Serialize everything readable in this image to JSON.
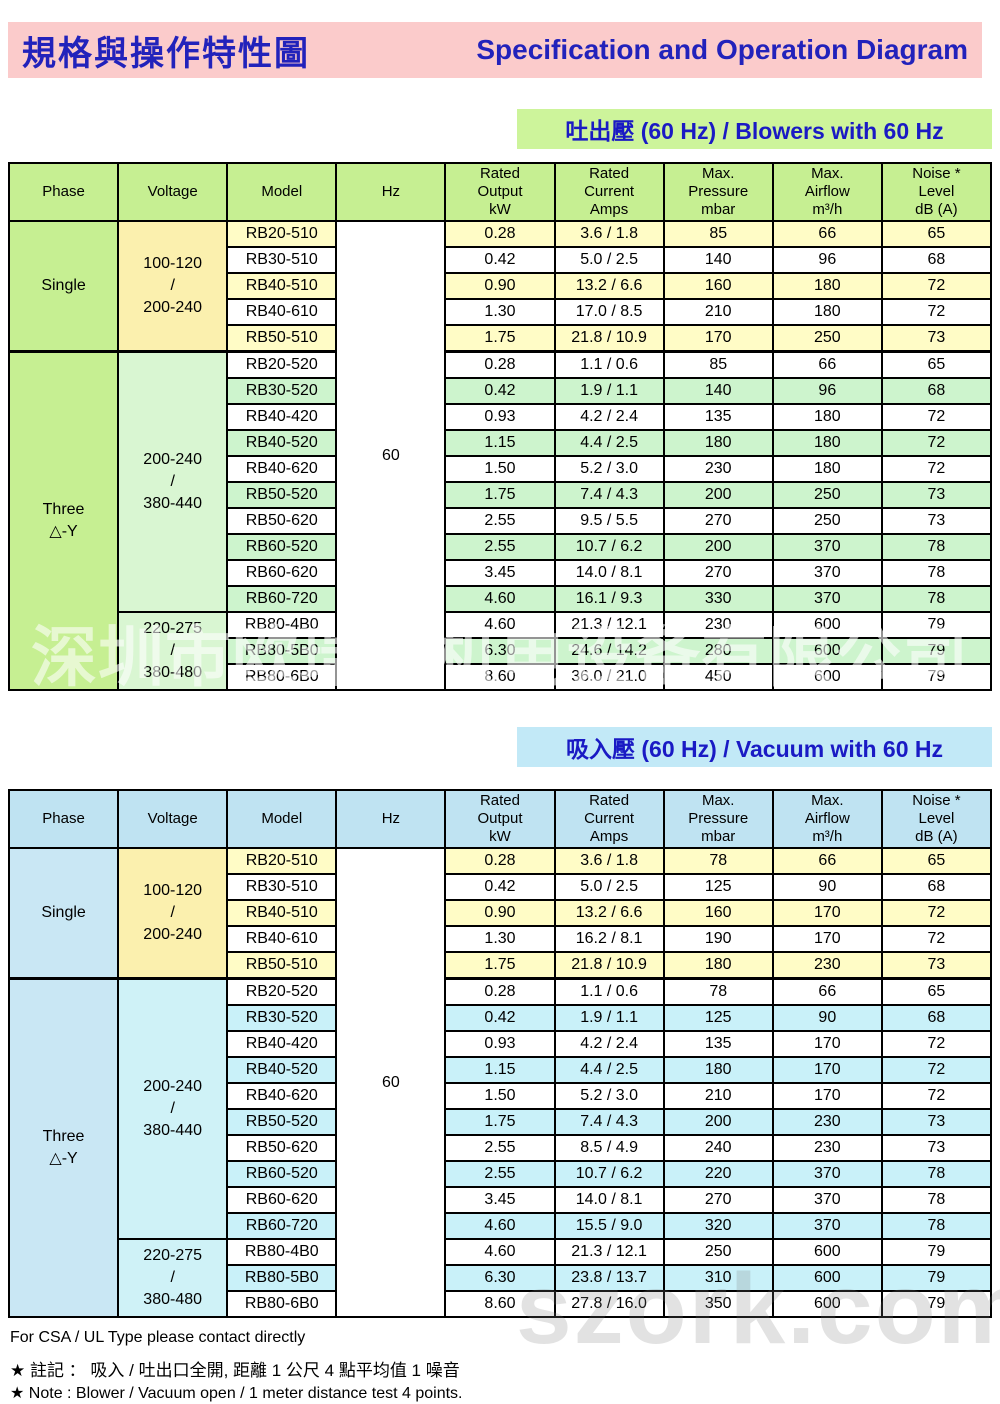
{
  "page": {
    "title_zh": "規格與操作特性圖",
    "title_en": "Specification and Operation Diagram",
    "watermark_center": "深圳市欧瑞克机电设备有限公司",
    "watermark_bottom": "szork.com",
    "footer": {
      "csa_note": "For CSA / UL Type please contact directly",
      "note_zh": "★  註記 ： 吸入 / 吐出口全開, 距離 1 公尺 4 點平均值 1 噪音",
      "note_en": "★ Note : Blower / Vacuum open / 1 meter distance test 4 points."
    },
    "colors": {
      "title_blue": "#2222BB",
      "banner_text_blue": "#1A1AC4",
      "pink_banner": "#FBCBCB",
      "green_banner": "#CDF49B",
      "blue_banner": "#C2E9F7",
      "border_black": "#000000"
    }
  },
  "tables": [
    {
      "id": "blowers",
      "banner": "吐出壓  (60 Hz) / Blowers with 60 Hz",
      "hz": "60",
      "header": [
        [
          "Phase"
        ],
        [
          "Voltage"
        ],
        [
          "Model"
        ],
        [
          "Hz"
        ],
        [
          "Rated",
          "Output",
          "kW"
        ],
        [
          "Rated",
          "Current",
          "Amps"
        ],
        [
          "Max.",
          "Pressure",
          "mbar"
        ],
        [
          "Max.",
          "Airflow",
          "m³/h"
        ],
        [
          "Noise *",
          "Level",
          "dB (A)"
        ]
      ],
      "theme": {
        "header_bg": "#C6EF92",
        "phase_bg": "#C6EF92",
        "voltage_single_bg": "#FBF0AE",
        "voltage_three_bg": "#D9F6D2",
        "shade_single": "#FFFCC6",
        "shade_three": "#CDF4CD",
        "white": "#FFFFFF"
      },
      "phase_groups": [
        {
          "lines": [
            "Single"
          ],
          "span": 5
        },
        {
          "lines": [
            "Three",
            "△-Y"
          ],
          "span": 13
        }
      ],
      "voltage_groups": [
        {
          "lines": [
            "100-120",
            "/",
            "200-240"
          ],
          "span": 5,
          "bg": "voltage_single_bg"
        },
        {
          "lines": [
            "200-240",
            "/",
            "380-440"
          ],
          "span": 10,
          "bg": "voltage_three_bg"
        },
        {
          "lines": [
            "220-275",
            "/",
            "380-480"
          ],
          "span": 3,
          "bg": "voltage_three_bg"
        }
      ],
      "rows": [
        {
          "model": "RB20-510",
          "output": "0.28",
          "current": "3.6 / 1.8",
          "pressure": "85",
          "airflow": "66",
          "noise": "65",
          "shade": "single"
        },
        {
          "model": "RB30-510",
          "output": "0.42",
          "current": "5.0 / 2.5",
          "pressure": "140",
          "airflow": "96",
          "noise": "68",
          "shade": ""
        },
        {
          "model": "RB40-510",
          "output": "0.90",
          "current": "13.2 / 6.6",
          "pressure": "160",
          "airflow": "180",
          "noise": "72",
          "shade": "single"
        },
        {
          "model": "RB40-610",
          "output": "1.30",
          "current": "17.0 / 8.5",
          "pressure": "210",
          "airflow": "180",
          "noise": "72",
          "shade": ""
        },
        {
          "model": "RB50-510",
          "output": "1.75",
          "current": "21.8 / 10.9",
          "pressure": "170",
          "airflow": "250",
          "noise": "73",
          "shade": "single"
        },
        {
          "model": "RB20-520",
          "output": "0.28",
          "current": "1.1 / 0.6",
          "pressure": "85",
          "airflow": "66",
          "noise": "65",
          "shade": ""
        },
        {
          "model": "RB30-520",
          "output": "0.42",
          "current": "1.9 / 1.1",
          "pressure": "140",
          "airflow": "96",
          "noise": "68",
          "shade": "three"
        },
        {
          "model": "RB40-420",
          "output": "0.93",
          "current": "4.2 / 2.4",
          "pressure": "135",
          "airflow": "180",
          "noise": "72",
          "shade": ""
        },
        {
          "model": "RB40-520",
          "output": "1.15",
          "current": "4.4 / 2.5",
          "pressure": "180",
          "airflow": "180",
          "noise": "72",
          "shade": "three"
        },
        {
          "model": "RB40-620",
          "output": "1.50",
          "current": "5.2 / 3.0",
          "pressure": "230",
          "airflow": "180",
          "noise": "72",
          "shade": ""
        },
        {
          "model": "RB50-520",
          "output": "1.75",
          "current": "7.4 / 4.3",
          "pressure": "200",
          "airflow": "250",
          "noise": "73",
          "shade": "three"
        },
        {
          "model": "RB50-620",
          "output": "2.55",
          "current": "9.5 / 5.5",
          "pressure": "270",
          "airflow": "250",
          "noise": "73",
          "shade": ""
        },
        {
          "model": "RB60-520",
          "output": "2.55",
          "current": "10.7 / 6.2",
          "pressure": "200",
          "airflow": "370",
          "noise": "78",
          "shade": "three"
        },
        {
          "model": "RB60-620",
          "output": "3.45",
          "current": "14.0 / 8.1",
          "pressure": "270",
          "airflow": "370",
          "noise": "78",
          "shade": ""
        },
        {
          "model": "RB60-720",
          "output": "4.60",
          "current": "16.1 / 9.3",
          "pressure": "330",
          "airflow": "370",
          "noise": "78",
          "shade": "three"
        },
        {
          "model": "RB80-4B0",
          "output": "4.60",
          "current": "21.3 / 12.1",
          "pressure": "230",
          "airflow": "600",
          "noise": "79",
          "shade": ""
        },
        {
          "model": "RB80-5B0",
          "output": "6.30",
          "current": "24.6 / 14.2",
          "pressure": "280",
          "airflow": "600",
          "noise": "79",
          "shade": "three"
        },
        {
          "model": "RB80-6B0",
          "output": "8.60",
          "current": "36.0 / 21.0",
          "pressure": "450",
          "airflow": "600",
          "noise": "79",
          "shade": ""
        }
      ]
    },
    {
      "id": "vacuum",
      "banner": "吸入壓  (60 Hz) / Vacuum with 60 Hz",
      "hz": "60",
      "header": [
        [
          "Phase"
        ],
        [
          "Voltage"
        ],
        [
          "Model"
        ],
        [
          "Hz"
        ],
        [
          "Rated",
          "Output",
          "kW"
        ],
        [
          "Rated",
          "Current",
          "Amps"
        ],
        [
          "Max.",
          "Pressure",
          "mbar"
        ],
        [
          "Max.",
          "Airflow",
          "m³/h"
        ],
        [
          "Noise *",
          "Level",
          "dB (A)"
        ]
      ],
      "theme": {
        "header_bg": "#BFE3F2",
        "phase_bg": "#C9E7F4",
        "voltage_single_bg": "#FBF0AE",
        "voltage_three_bg": "#CFF2F7",
        "shade_single": "#FFFCC6",
        "shade_three": "#C9F1F9",
        "white": "#FFFFFF"
      },
      "phase_groups": [
        {
          "lines": [
            "Single"
          ],
          "span": 5
        },
        {
          "lines": [
            "Three",
            "△-Y"
          ],
          "span": 13
        }
      ],
      "voltage_groups": [
        {
          "lines": [
            "100-120",
            "/",
            "200-240"
          ],
          "span": 5,
          "bg": "voltage_single_bg"
        },
        {
          "lines": [
            "200-240",
            "/",
            "380-440"
          ],
          "span": 10,
          "bg": "voltage_three_bg"
        },
        {
          "lines": [
            "220-275",
            "/",
            "380-480"
          ],
          "span": 3,
          "bg": "voltage_three_bg"
        }
      ],
      "rows": [
        {
          "model": "RB20-510",
          "output": "0.28",
          "current": "3.6 / 1.8",
          "pressure": "78",
          "airflow": "66",
          "noise": "65",
          "shade": "single"
        },
        {
          "model": "RB30-510",
          "output": "0.42",
          "current": "5.0 / 2.5",
          "pressure": "125",
          "airflow": "90",
          "noise": "68",
          "shade": ""
        },
        {
          "model": "RB40-510",
          "output": "0.90",
          "current": "13.2 / 6.6",
          "pressure": "160",
          "airflow": "170",
          "noise": "72",
          "shade": "single"
        },
        {
          "model": "RB40-610",
          "output": "1.30",
          "current": "16.2 / 8.1",
          "pressure": "190",
          "airflow": "170",
          "noise": "72",
          "shade": ""
        },
        {
          "model": "RB50-510",
          "output": "1.75",
          "current": "21.8 / 10.9",
          "pressure": "180",
          "airflow": "230",
          "noise": "73",
          "shade": "single"
        },
        {
          "model": "RB20-520",
          "output": "0.28",
          "current": "1.1 / 0.6",
          "pressure": "78",
          "airflow": "66",
          "noise": "65",
          "shade": ""
        },
        {
          "model": "RB30-520",
          "output": "0.42",
          "current": "1.9 / 1.1",
          "pressure": "125",
          "airflow": "90",
          "noise": "68",
          "shade": "three"
        },
        {
          "model": "RB40-420",
          "output": "0.93",
          "current": "4.2 / 2.4",
          "pressure": "135",
          "airflow": "170",
          "noise": "72",
          "shade": ""
        },
        {
          "model": "RB40-520",
          "output": "1.15",
          "current": "4.4 / 2.5",
          "pressure": "180",
          "airflow": "170",
          "noise": "72",
          "shade": "three"
        },
        {
          "model": "RB40-620",
          "output": "1.50",
          "current": "5.2 / 3.0",
          "pressure": "210",
          "airflow": "170",
          "noise": "72",
          "shade": ""
        },
        {
          "model": "RB50-520",
          "output": "1.75",
          "current": "7.4 / 4.3",
          "pressure": "200",
          "airflow": "230",
          "noise": "73",
          "shade": "three"
        },
        {
          "model": "RB50-620",
          "output": "2.55",
          "current": "8.5 / 4.9",
          "pressure": "240",
          "airflow": "230",
          "noise": "73",
          "shade": ""
        },
        {
          "model": "RB60-520",
          "output": "2.55",
          "current": "10.7 / 6.2",
          "pressure": "220",
          "airflow": "370",
          "noise": "78",
          "shade": "three"
        },
        {
          "model": "RB60-620",
          "output": "3.45",
          "current": "14.0 / 8.1",
          "pressure": "270",
          "airflow": "370",
          "noise": "78",
          "shade": ""
        },
        {
          "model": "RB60-720",
          "output": "4.60",
          "current": "15.5 / 9.0",
          "pressure": "320",
          "airflow": "370",
          "noise": "78",
          "shade": "three"
        },
        {
          "model": "RB80-4B0",
          "output": "4.60",
          "current": "21.3 / 12.1",
          "pressure": "250",
          "airflow": "600",
          "noise": "79",
          "shade": ""
        },
        {
          "model": "RB80-5B0",
          "output": "6.30",
          "current": "23.8 / 13.7",
          "pressure": "310",
          "airflow": "600",
          "noise": "79",
          "shade": "three"
        },
        {
          "model": "RB80-6B0",
          "output": "8.60",
          "current": "27.8 / 16.0",
          "pressure": "350",
          "airflow": "600",
          "noise": "79",
          "shade": ""
        }
      ]
    }
  ]
}
